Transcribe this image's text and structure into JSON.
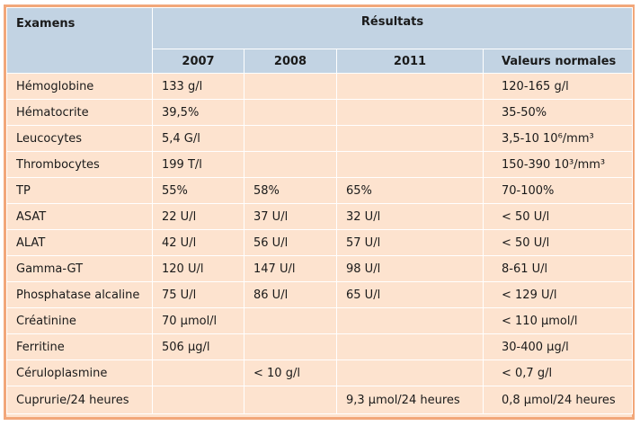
{
  "header": {
    "examens": "Examens",
    "resultats": "Résultats",
    "years": [
      "2007",
      "2008",
      "2011"
    ],
    "valeurs_normales": "Valeurs normales"
  },
  "rows": [
    {
      "exam": "Hémoglobine",
      "v2007": "133 g/l",
      "v2008": "",
      "v2011": "",
      "normal": "120-165 g/l"
    },
    {
      "exam": "Hématocrite",
      "v2007": "39,5%",
      "v2008": "",
      "v2011": "",
      "normal": "35-50%"
    },
    {
      "exam": "Leucocytes",
      "v2007": "5,4 G/l",
      "v2008": "",
      "v2011": "",
      "normal": "3,5-10 10⁶/mm³"
    },
    {
      "exam": "Thrombocytes",
      "v2007": "199 T/l",
      "v2008": "",
      "v2011": "",
      "normal": "150-390 10³/mm³"
    },
    {
      "exam": "TP",
      "v2007": "55%",
      "v2008": "58%",
      "v2011": "65%",
      "normal": "70-100%"
    },
    {
      "exam": "ASAT",
      "v2007": "22 U/l",
      "v2008": "37 U/l",
      "v2011": "32 U/l",
      "normal": "< 50 U/l"
    },
    {
      "exam": "ALAT",
      "v2007": "42 U/l",
      "v2008": "56 U/l",
      "v2011": "57 U/l",
      "normal": "< 50 U/l"
    },
    {
      "exam": "Gamma-GT",
      "v2007": "120 U/l",
      "v2008": "147 U/l",
      "v2011": "98 U/l",
      "normal": "8-61 U/l"
    },
    {
      "exam": "Phosphatase alcaline",
      "v2007": "75 U/l",
      "v2008": "86 U/l",
      "v2011": "65 U/l",
      "normal": "< 129 U/l"
    },
    {
      "exam": "Créatinine",
      "v2007": "70 μmol/l",
      "v2008": "",
      "v2011": "",
      "normal": "< 110 μmol/l"
    },
    {
      "exam": "Ferritine",
      "v2007": "506 μg/l",
      "v2008": "",
      "v2011": "",
      "normal": "30-400 μg/l"
    },
    {
      "exam": "Céruloplasmine",
      "v2007": "",
      "v2008": "< 10 g/l",
      "v2011": "",
      "normal": "< 0,7 g/l"
    },
    {
      "exam": "Cuprurie/24 heures",
      "v2007": "",
      "v2008": "",
      "v2011": "9,3 μmol/24 heures",
      "normal": "0,8 μmol/24 heures"
    }
  ]
}
